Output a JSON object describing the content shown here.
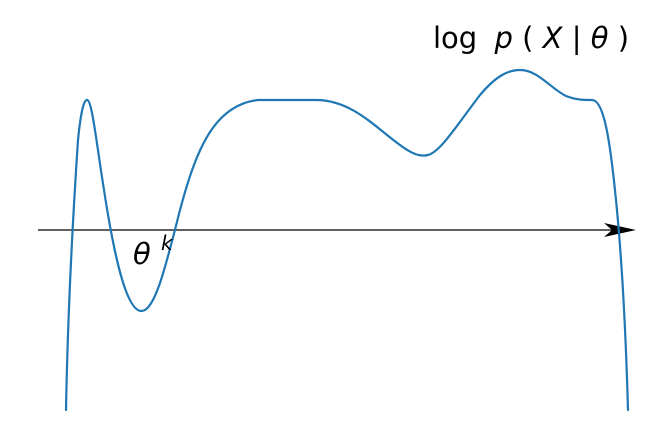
{
  "diagram": {
    "curve_label": "log p(X | θ)",
    "curve_label_parts": {
      "func": "log",
      "p": "p",
      "open": "(",
      "x": "X",
      "bar": " | ",
      "theta": "θ",
      "close": ")"
    },
    "point_label": {
      "symbol": "θ",
      "superscript": "k"
    },
    "colors": {
      "curve": "#1f77b4",
      "axis": "#000000",
      "background": "#ffffff"
    }
  }
}
